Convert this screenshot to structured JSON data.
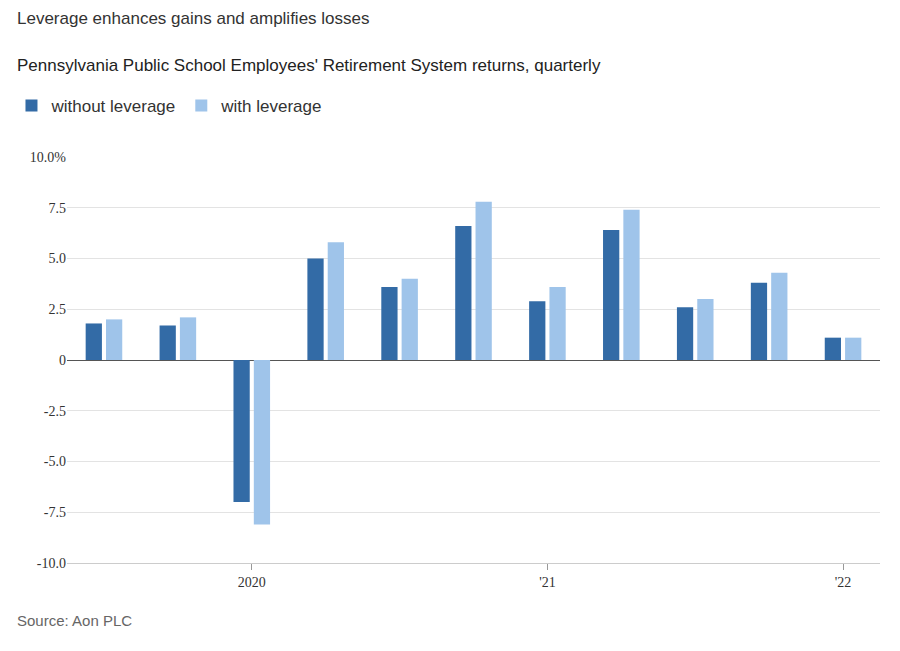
{
  "chart_data": {
    "type": "bar",
    "title": "Leverage enhances gains and amplifies losses",
    "subtitle": "Pennsylvania Public School Employees' Retirement System returns, quarterly",
    "source": "Source: Aon PLC",
    "categories": [
      null,
      null,
      "2020",
      null,
      null,
      null,
      "'21",
      null,
      null,
      null,
      "'22"
    ],
    "series": [
      {
        "name": "without leverage",
        "color": "#336ba6",
        "values": [
          1.8,
          1.7,
          -7.0,
          5.0,
          3.6,
          6.6,
          2.9,
          6.4,
          2.6,
          3.8,
          1.1
        ]
      },
      {
        "name": "with leverage",
        "color": "#9fc4ea",
        "values": [
          2.0,
          2.1,
          -8.1,
          5.8,
          4.0,
          7.8,
          3.6,
          7.4,
          3.0,
          4.3,
          1.1
        ]
      }
    ],
    "ylim": [
      -10,
      10
    ],
    "yticks": [
      {
        "value": -10,
        "label": "-10.0"
      },
      {
        "value": -7.5,
        "label": "-7.5"
      },
      {
        "value": -5,
        "label": "-5.0"
      },
      {
        "value": -2.5,
        "label": "-2.5"
      },
      {
        "value": 0,
        "label": "0"
      },
      {
        "value": 2.5,
        "label": "2.5"
      },
      {
        "value": 5,
        "label": "5.0"
      },
      {
        "value": 7.5,
        "label": "7.5"
      },
      {
        "value": 10,
        "label": "10.0%"
      }
    ],
    "grid": true,
    "legend": "top-left"
  }
}
